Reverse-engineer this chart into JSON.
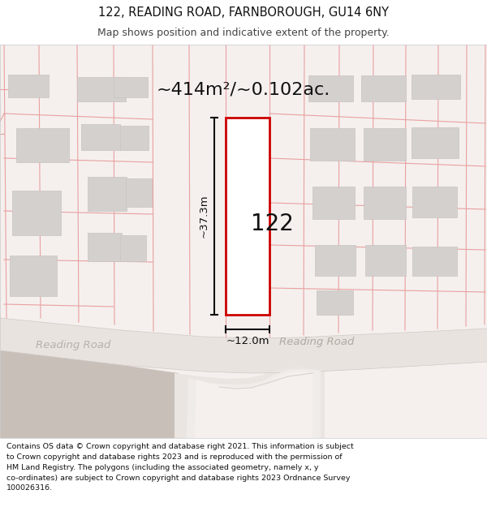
{
  "title": "122, READING ROAD, FARNBOROUGH, GU14 6NY",
  "subtitle": "Map shows position and indicative extent of the property.",
  "area_label": "~414m²/~0.102ac.",
  "property_number": "122",
  "dim_vertical": "~37.3m",
  "dim_horizontal": "~12.0m",
  "road_label_left": "Reading Road",
  "road_label_right": "Reading Road",
  "disclaimer": "Contains OS data © Crown copyright and database right 2021. This information is subject\nto Crown copyright and database rights 2023 and is reproduced with the permission of\nHM Land Registry. The polygons (including the associated geometry, namely x, y\nco-ordinates) are subject to Crown copyright and database rights 2023 Ordnance Survey\n100026316.",
  "map_bg": "#f5f0ee",
  "road_color": "#e8e3df",
  "junction_color": "#ede8e4",
  "tan_area_color": "#d8cfc8",
  "property_line_color": "#e8a0a0",
  "highlight_color": "#cc0000",
  "building_fill": "#d4d0ce",
  "building_stroke": "#c8c4c2",
  "dim_line_color": "#111111",
  "header_bg": "#ffffff",
  "footer_bg": "#ffffff",
  "road_label_color": "#aaaaaa",
  "road_label_left_color": "#bbbbbb"
}
